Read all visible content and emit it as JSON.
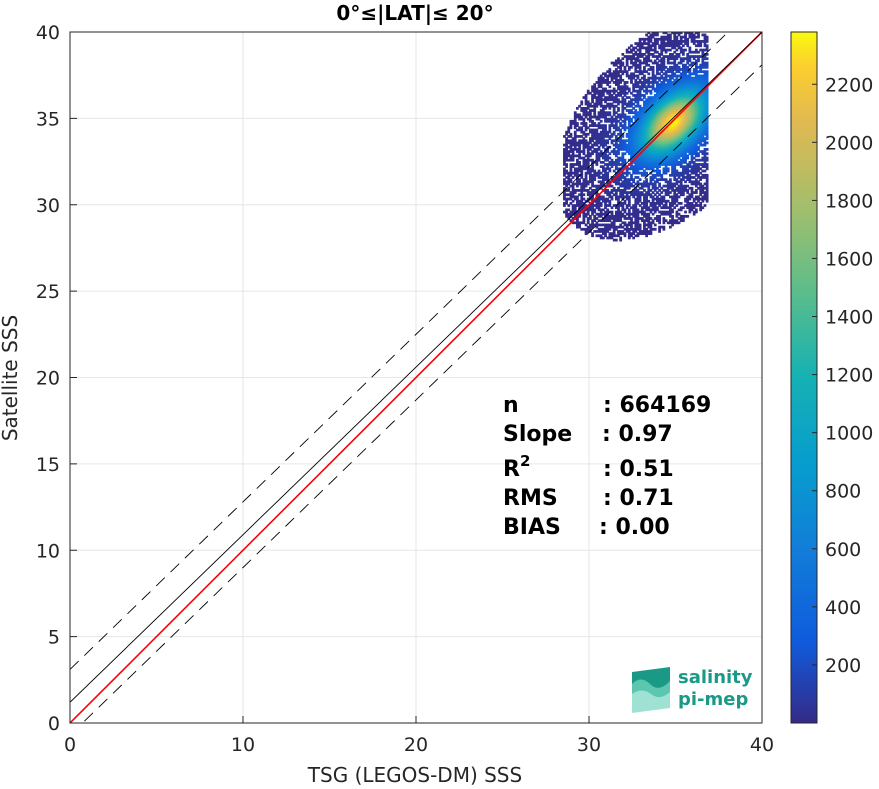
{
  "chart_data": {
    "type": "heatmap",
    "title": "0°≤|LAT|≤ 20°",
    "xlabel": "TSG (LEGOS-DM) SSS",
    "ylabel": "Satellite SSS",
    "xlim": [
      0,
      40
    ],
    "ylim": [
      0,
      40
    ],
    "xticks": [
      "0",
      "10",
      "20",
      "30",
      "40"
    ],
    "yticks": [
      "0",
      "5",
      "10",
      "15",
      "20",
      "25",
      "30",
      "35",
      "40"
    ],
    "grid": true,
    "colormap": "parula",
    "colorbar": {
      "range": [
        0,
        2380
      ],
      "ticks": [
        "200",
        "400",
        "600",
        "800",
        "1000",
        "1200",
        "1400",
        "1600",
        "1800",
        "2000",
        "2200"
      ]
    },
    "density": {
      "center": [
        34.8,
        34.7
      ],
      "peak": 2350,
      "x_extent": [
        28.5,
        36.8
      ],
      "y_extent": [
        26.0,
        40.0
      ]
    },
    "lines": [
      {
        "role": "fit",
        "color": "#ff0000",
        "x": [
          0,
          40
        ],
        "y": [
          0,
          40
        ]
      },
      {
        "role": "reference",
        "color": "#000000",
        "x": [
          0,
          40
        ],
        "y": [
          1.2,
          40
        ]
      },
      {
        "role": "upper-bound",
        "color": "#000000",
        "dash": true,
        "x": [
          0,
          40
        ],
        "y": [
          3.1,
          41.9
        ]
      },
      {
        "role": "lower-bound",
        "color": "#000000",
        "dash": true,
        "x": [
          0,
          40
        ],
        "y": [
          -0.7,
          38.1
        ]
      }
    ],
    "stats": [
      {
        "label": "n",
        "sup": "",
        "value": ": 664169"
      },
      {
        "label": "Slope",
        "sup": "",
        "value": ": 0.97"
      },
      {
        "label": "R",
        "sup": "2",
        "value": ": 0.51"
      },
      {
        "label": "RMS",
        "sup": "",
        "value": ": 0.71"
      },
      {
        "label": "BIAS",
        "sup": "",
        "value": ": 0.00"
      }
    ]
  },
  "logo": {
    "line1": "salinity",
    "line2": "pi-mep",
    "color": "#1a9a86"
  }
}
